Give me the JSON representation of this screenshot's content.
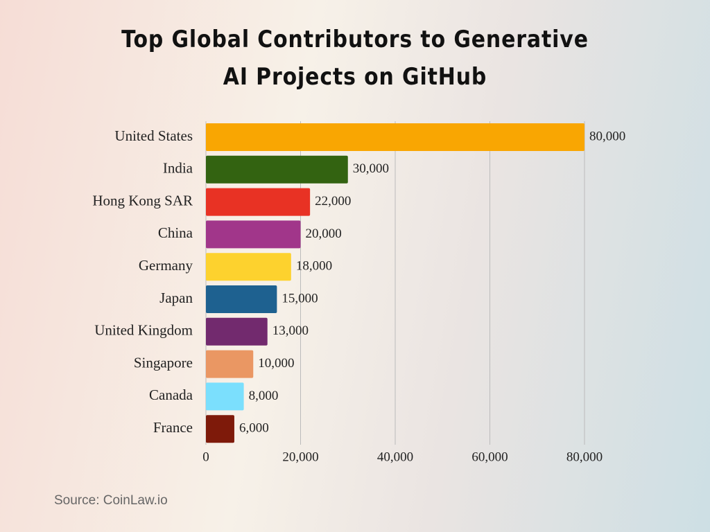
{
  "chart_data": {
    "type": "bar",
    "orientation": "horizontal",
    "title": "Top Global Contributors to Generative AI Projects on GitHub",
    "categories": [
      "United States",
      "India",
      "Hong Kong SAR",
      "China",
      "Germany",
      "Japan",
      "United Kingdom",
      "Singapore",
      "Canada",
      "France"
    ],
    "values": [
      80000,
      30000,
      22000,
      20000,
      18000,
      15000,
      13000,
      10000,
      8000,
      6000
    ],
    "value_labels": [
      "80,000",
      "30,000",
      "22,000",
      "20,000",
      "18,000",
      "15,000",
      "13,000",
      "10,000",
      "8,000",
      "6,000"
    ],
    "colors": [
      "#f9a602",
      "#336311",
      "#e83224",
      "#a1368a",
      "#fdd22e",
      "#1e6190",
      "#722a6e",
      "#ea9763",
      "#7bdffd",
      "#7e1a0a"
    ],
    "xlim": [
      0,
      80000
    ],
    "xticks": [
      0,
      {
        "value": 20000,
        "label": "20,000"
      },
      {
        "value": 40000,
        "label": "40,000"
      },
      {
        "value": 60000,
        "label": "60,000"
      },
      {
        "value": 80000,
        "label": "80,000"
      }
    ],
    "grid": true,
    "source": "Source: CoinLaw.io"
  }
}
